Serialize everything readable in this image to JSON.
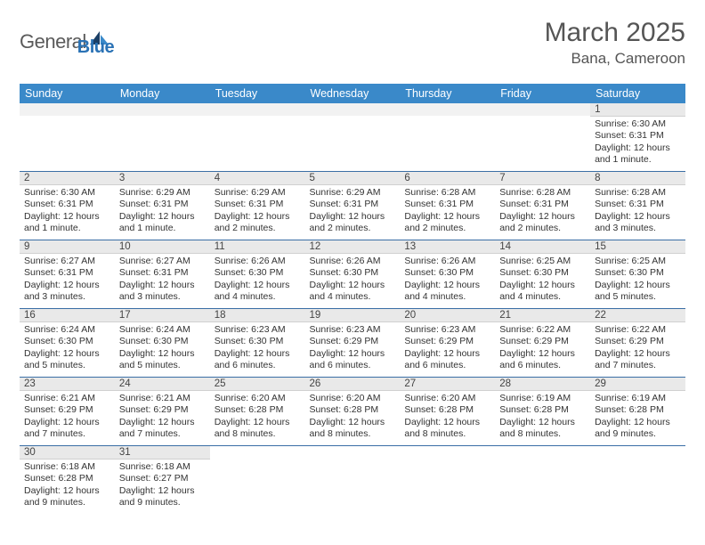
{
  "logo": {
    "text1": "General",
    "text2": "Blue"
  },
  "title": "March 2025",
  "location": "Bana, Cameroon",
  "days_of_week": [
    "Sunday",
    "Monday",
    "Tuesday",
    "Wednesday",
    "Thursday",
    "Friday",
    "Saturday"
  ],
  "header_bg": "#3a89c9",
  "cell_border": "#3a6ea5",
  "daynum_bg": "#e9e9e9",
  "weeks": [
    [
      null,
      null,
      null,
      null,
      null,
      null,
      {
        "n": "1",
        "sr": "6:30 AM",
        "ss": "6:31 PM",
        "dl": "12 hours and 1 minute."
      }
    ],
    [
      {
        "n": "2",
        "sr": "6:30 AM",
        "ss": "6:31 PM",
        "dl": "12 hours and 1 minute."
      },
      {
        "n": "3",
        "sr": "6:29 AM",
        "ss": "6:31 PM",
        "dl": "12 hours and 1 minute."
      },
      {
        "n": "4",
        "sr": "6:29 AM",
        "ss": "6:31 PM",
        "dl": "12 hours and 2 minutes."
      },
      {
        "n": "5",
        "sr": "6:29 AM",
        "ss": "6:31 PM",
        "dl": "12 hours and 2 minutes."
      },
      {
        "n": "6",
        "sr": "6:28 AM",
        "ss": "6:31 PM",
        "dl": "12 hours and 2 minutes."
      },
      {
        "n": "7",
        "sr": "6:28 AM",
        "ss": "6:31 PM",
        "dl": "12 hours and 2 minutes."
      },
      {
        "n": "8",
        "sr": "6:28 AM",
        "ss": "6:31 PM",
        "dl": "12 hours and 3 minutes."
      }
    ],
    [
      {
        "n": "9",
        "sr": "6:27 AM",
        "ss": "6:31 PM",
        "dl": "12 hours and 3 minutes."
      },
      {
        "n": "10",
        "sr": "6:27 AM",
        "ss": "6:31 PM",
        "dl": "12 hours and 3 minutes."
      },
      {
        "n": "11",
        "sr": "6:26 AM",
        "ss": "6:30 PM",
        "dl": "12 hours and 4 minutes."
      },
      {
        "n": "12",
        "sr": "6:26 AM",
        "ss": "6:30 PM",
        "dl": "12 hours and 4 minutes."
      },
      {
        "n": "13",
        "sr": "6:26 AM",
        "ss": "6:30 PM",
        "dl": "12 hours and 4 minutes."
      },
      {
        "n": "14",
        "sr": "6:25 AM",
        "ss": "6:30 PM",
        "dl": "12 hours and 4 minutes."
      },
      {
        "n": "15",
        "sr": "6:25 AM",
        "ss": "6:30 PM",
        "dl": "12 hours and 5 minutes."
      }
    ],
    [
      {
        "n": "16",
        "sr": "6:24 AM",
        "ss": "6:30 PM",
        "dl": "12 hours and 5 minutes."
      },
      {
        "n": "17",
        "sr": "6:24 AM",
        "ss": "6:30 PM",
        "dl": "12 hours and 5 minutes."
      },
      {
        "n": "18",
        "sr": "6:23 AM",
        "ss": "6:30 PM",
        "dl": "12 hours and 6 minutes."
      },
      {
        "n": "19",
        "sr": "6:23 AM",
        "ss": "6:29 PM",
        "dl": "12 hours and 6 minutes."
      },
      {
        "n": "20",
        "sr": "6:23 AM",
        "ss": "6:29 PM",
        "dl": "12 hours and 6 minutes."
      },
      {
        "n": "21",
        "sr": "6:22 AM",
        "ss": "6:29 PM",
        "dl": "12 hours and 6 minutes."
      },
      {
        "n": "22",
        "sr": "6:22 AM",
        "ss": "6:29 PM",
        "dl": "12 hours and 7 minutes."
      }
    ],
    [
      {
        "n": "23",
        "sr": "6:21 AM",
        "ss": "6:29 PM",
        "dl": "12 hours and 7 minutes."
      },
      {
        "n": "24",
        "sr": "6:21 AM",
        "ss": "6:29 PM",
        "dl": "12 hours and 7 minutes."
      },
      {
        "n": "25",
        "sr": "6:20 AM",
        "ss": "6:28 PM",
        "dl": "12 hours and 8 minutes."
      },
      {
        "n": "26",
        "sr": "6:20 AM",
        "ss": "6:28 PM",
        "dl": "12 hours and 8 minutes."
      },
      {
        "n": "27",
        "sr": "6:20 AM",
        "ss": "6:28 PM",
        "dl": "12 hours and 8 minutes."
      },
      {
        "n": "28",
        "sr": "6:19 AM",
        "ss": "6:28 PM",
        "dl": "12 hours and 8 minutes."
      },
      {
        "n": "29",
        "sr": "6:19 AM",
        "ss": "6:28 PM",
        "dl": "12 hours and 9 minutes."
      }
    ],
    [
      {
        "n": "30",
        "sr": "6:18 AM",
        "ss": "6:28 PM",
        "dl": "12 hours and 9 minutes."
      },
      {
        "n": "31",
        "sr": "6:18 AM",
        "ss": "6:27 PM",
        "dl": "12 hours and 9 minutes."
      },
      null,
      null,
      null,
      null,
      null
    ]
  ],
  "labels": {
    "sunrise": "Sunrise:",
    "sunset": "Sunset:",
    "daylight": "Daylight:"
  }
}
